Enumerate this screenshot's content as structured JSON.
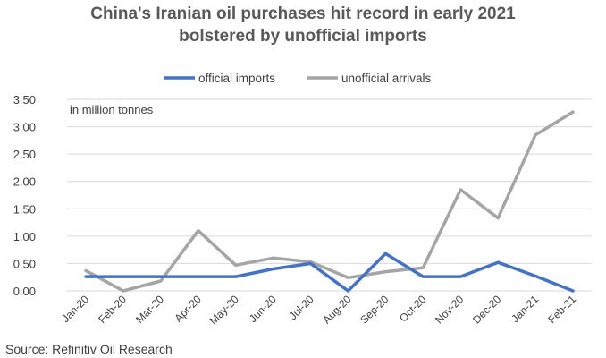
{
  "chart_data": {
    "type": "line",
    "title_lines": [
      "China's Iranian oil purchases hit record in early 2021",
      "bolstered by unofficial imports"
    ],
    "annotation": "in million tonnes",
    "source": "Source: Refinitiv Oil Research",
    "categories": [
      "Jan-20",
      "Feb-20",
      "Mar-20",
      "Apr-20",
      "May-20",
      "Jun-20",
      "Jul-20",
      "Aug-20",
      "Sep-20",
      "Oct-20",
      "Nov-20",
      "Dec-20",
      "Jan-21",
      "Feb-21"
    ],
    "y_ticks": [
      "0.00",
      "0.50",
      "1.00",
      "1.50",
      "2.00",
      "2.50",
      "3.00",
      "3.50"
    ],
    "ylim": [
      0,
      3.5
    ],
    "grid": true,
    "legend_position": "top",
    "series": [
      {
        "name": "official imports",
        "color": "#4472C4",
        "values": [
          0.26,
          0.26,
          0.26,
          0.26,
          0.26,
          0.4,
          0.5,
          0.0,
          0.68,
          0.26,
          0.26,
          0.52,
          0.27,
          0.0
        ]
      },
      {
        "name": "unofficial arrivals",
        "color": "#A5A5A5",
        "values": [
          0.37,
          0.0,
          0.18,
          1.1,
          0.47,
          0.6,
          0.53,
          0.24,
          0.35,
          0.42,
          1.85,
          1.33,
          2.85,
          3.27
        ]
      }
    ]
  }
}
